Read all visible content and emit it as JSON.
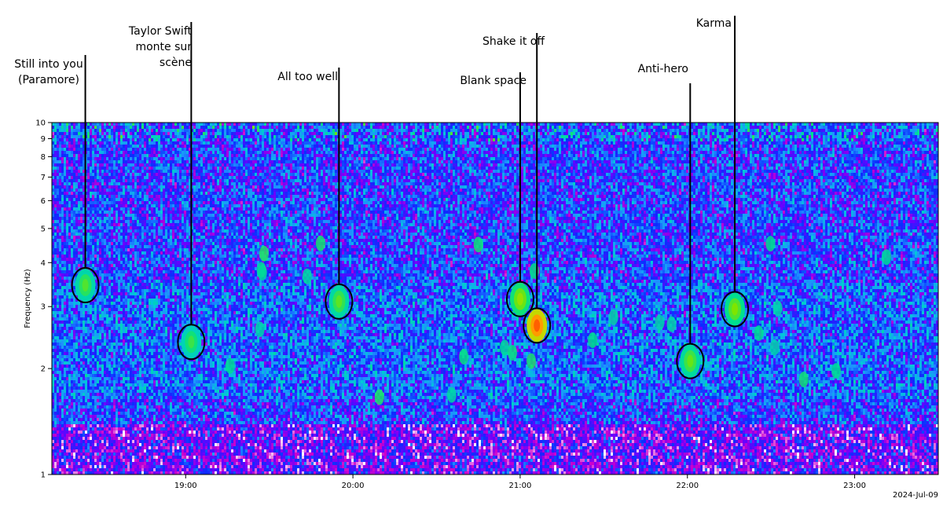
{
  "chart_data": {
    "type": "heatmap",
    "ylabel": "Frequency (Hz)",
    "y_scale": "log",
    "ylim": [
      1,
      10
    ],
    "y_ticks": [
      1,
      2,
      3,
      4,
      5,
      6,
      7,
      8,
      9,
      10
    ],
    "y_tick_labels": [
      "1",
      "2",
      "3",
      "4",
      "5",
      "6",
      "7",
      "8",
      "9",
      "10"
    ],
    "xlim": [
      "18:12",
      "23:30"
    ],
    "x_ticks": [
      "19:00",
      "20:00",
      "21:00",
      "22:00",
      "23:00"
    ],
    "date_label": "2024-Jul-09",
    "colormap": [
      "#ffffff",
      "#cc00cc",
      "#6a00ff",
      "#0a2dff",
      "#1e90ff",
      "#00c8d8",
      "#00e08a",
      "#7be600",
      "#ffcc00",
      "#ff2200"
    ],
    "annotations": [
      {
        "label": [
          "Still into you",
          "(Paramore)"
        ],
        "time": "18:24",
        "frequency": 3.45,
        "intensity": 0.74
      },
      {
        "label": [
          "Taylor Swift",
          "monte sur",
          "scène"
        ],
        "time": "19:02",
        "frequency": 2.38,
        "intensity": 0.72
      },
      {
        "label": [
          "All too well"
        ],
        "time": "19:55",
        "frequency": 3.1,
        "intensity": 0.75
      },
      {
        "label": [
          "Blank space"
        ],
        "time": "21:00",
        "frequency": 3.15,
        "intensity": 0.8
      },
      {
        "label": [
          "Shake it off"
        ],
        "time": "21:06",
        "frequency": 2.65,
        "intensity": 0.96
      },
      {
        "label": [
          "Anti-hero"
        ],
        "time": "22:01",
        "frequency": 2.1,
        "intensity": 0.76
      },
      {
        "label": [
          "Karma"
        ],
        "time": "22:17",
        "frequency": 2.95,
        "intensity": 0.78
      }
    ]
  }
}
